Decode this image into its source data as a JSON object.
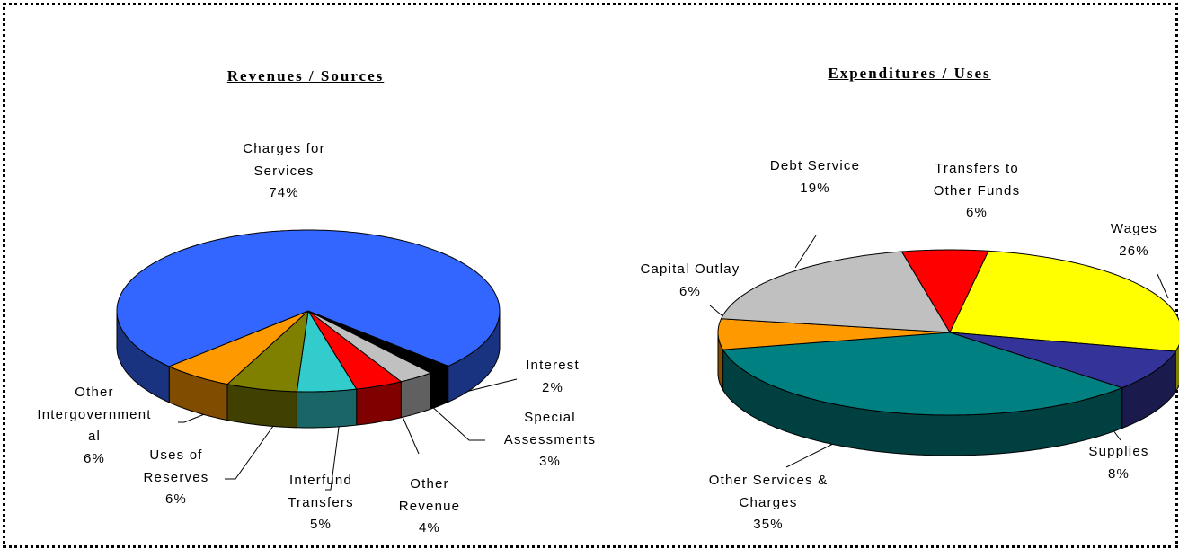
{
  "chart_data": [
    {
      "type": "pie",
      "title": "Revenues / Sources",
      "categories": [
        "Interest",
        "Special Assessments",
        "Other Revenue",
        "Interfund Transfers",
        "Uses of Reserves",
        "Other Intergovernmental",
        "Charges for Services"
      ],
      "values": [
        2,
        3,
        4,
        5,
        6,
        6,
        74
      ],
      "value_labels": [
        "2%",
        "3%",
        "4%",
        "5%",
        "6%",
        "6%",
        "74%"
      ],
      "colors": [
        "#000000",
        "#c0c0c0",
        "#ff0000",
        "#33cccc",
        "#808000",
        "#ff9900",
        "#3366ff"
      ]
    },
    {
      "type": "pie",
      "title": "Expenditures / Uses",
      "categories": [
        "Transfers to Other Funds",
        "Wages",
        "Supplies",
        "Other Services & Charges",
        "Capital Outlay",
        "Debt Service"
      ],
      "values": [
        6,
        26,
        8,
        35,
        6,
        19
      ],
      "value_labels": [
        "6%",
        "26%",
        "8%",
        "35%",
        "6%",
        "19%"
      ],
      "colors": [
        "#ff0000",
        "#ffff00",
        "#333399",
        "#008080",
        "#ff9900",
        "#c0c0c0"
      ]
    }
  ]
}
